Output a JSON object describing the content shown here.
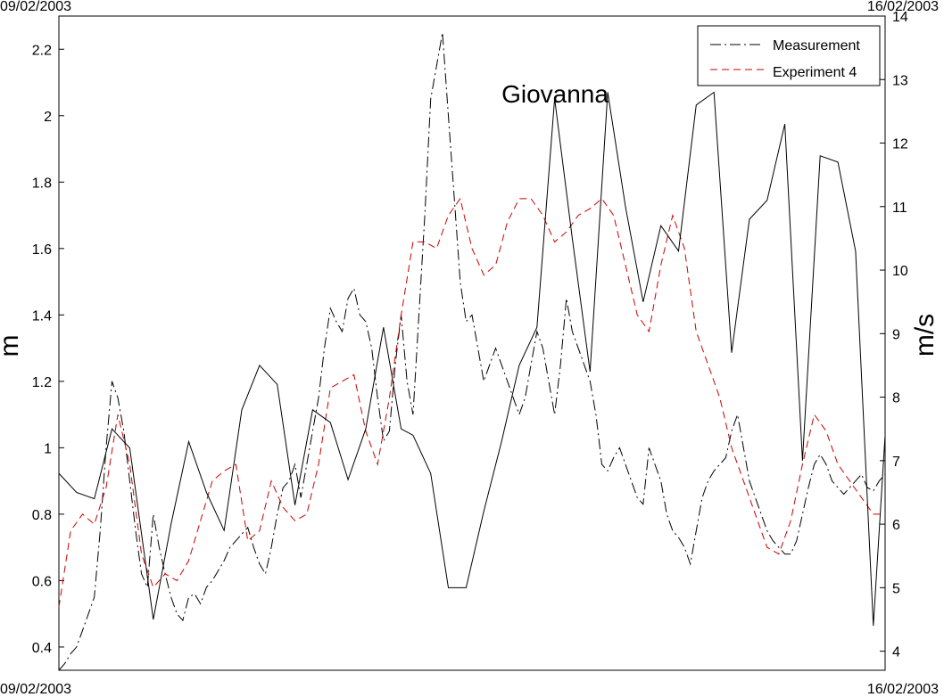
{
  "chart_data": {
    "type": "line",
    "date_top_left": "09/02/2003",
    "date_top_right": "16/02/2003",
    "date_bottom_left": "09/02/2003",
    "date_bottom_right": "16/02/2003",
    "ylabel_left": "m",
    "ylabel_right": "m/s",
    "ylim_left": [
      0.33,
      2.3
    ],
    "ylim_right": [
      3.7,
      14
    ],
    "yticks_left": [
      "0.4",
      "0.6",
      "0.8",
      "1",
      "1.2",
      "1.4",
      "1.6",
      "1.8",
      "2",
      "2.2"
    ],
    "yticks_right": [
      "4",
      "5",
      "6",
      "7",
      "8",
      "9",
      "10",
      "11",
      "12",
      "13",
      "14"
    ],
    "xlim_days": [
      0,
      7
    ],
    "annotation": {
      "text": "Giovanna",
      "x": 3.75,
      "y": 2.04
    },
    "legend": {
      "placement": "top-right"
    },
    "series": [
      {
        "name": "Measurement",
        "axis": "left",
        "color": "#000000",
        "style": "dashdot",
        "x": [
          0,
          0.05,
          0.1,
          0.15,
          0.2,
          0.25,
          0.3,
          0.35,
          0.4,
          0.45,
          0.5,
          0.55,
          0.6,
          0.65,
          0.7,
          0.75,
          0.8,
          0.85,
          0.9,
          0.95,
          1.0,
          1.05,
          1.1,
          1.15,
          1.2,
          1.25,
          1.3,
          1.35,
          1.4,
          1.45,
          1.5,
          1.55,
          1.6,
          1.65,
          1.7,
          1.75,
          1.8,
          1.85,
          1.9,
          1.95,
          2.0,
          2.05,
          2.1,
          2.15,
          2.2,
          2.25,
          2.3,
          2.35,
          2.4,
          2.45,
          2.5,
          2.55,
          2.6,
          2.65,
          2.7,
          2.75,
          2.8,
          2.85,
          2.9,
          2.95,
          3.0,
          3.05,
          3.1,
          3.15,
          3.2,
          3.25,
          3.3,
          3.35,
          3.4,
          3.45,
          3.5,
          3.55,
          3.6,
          3.65,
          3.7,
          3.75,
          3.8,
          3.85,
          3.9,
          3.95,
          4.0,
          4.05,
          4.1,
          4.15,
          4.2,
          4.25,
          4.3,
          4.35,
          4.4,
          4.45,
          4.5,
          4.55,
          4.6,
          4.65,
          4.7,
          4.75,
          4.8,
          4.85,
          4.9,
          4.95,
          5.0,
          5.05,
          5.1,
          5.15,
          5.2,
          5.25,
          5.3,
          5.35,
          5.4,
          5.45,
          5.5,
          5.55,
          5.6,
          5.65,
          5.7,
          5.75,
          5.8,
          5.85,
          5.9,
          5.95,
          6.0,
          6.05,
          6.1,
          6.15,
          6.2,
          6.25,
          6.3,
          6.35,
          6.4,
          6.45,
          6.5,
          6.55,
          6.6,
          6.65,
          6.7,
          6.75,
          6.8,
          6.85,
          6.9,
          6.95,
          7.0
        ],
        "values": [
          0.33,
          0.35,
          0.38,
          0.4,
          0.45,
          0.5,
          0.55,
          0.75,
          1.0,
          1.2,
          1.15,
          1.05,
          0.9,
          0.75,
          0.62,
          0.58,
          0.8,
          0.7,
          0.62,
          0.55,
          0.5,
          0.48,
          0.55,
          0.56,
          0.53,
          0.58,
          0.6,
          0.63,
          0.66,
          0.7,
          0.72,
          0.74,
          0.76,
          0.7,
          0.65,
          0.62,
          0.7,
          0.8,
          0.88,
          0.9,
          0.95,
          0.85,
          0.95,
          1.05,
          1.15,
          1.3,
          1.42,
          1.38,
          1.35,
          1.45,
          1.48,
          1.4,
          1.38,
          1.3,
          1.15,
          1.02,
          1.05,
          1.25,
          1.4,
          1.2,
          1.1,
          1.4,
          1.7,
          2.05,
          2.15,
          2.25,
          2.0,
          1.75,
          1.5,
          1.38,
          1.4,
          1.3,
          1.2,
          1.25,
          1.3,
          1.25,
          1.2,
          1.15,
          1.1,
          1.15,
          1.25,
          1.35,
          1.3,
          1.2,
          1.1,
          1.25,
          1.45,
          1.35,
          1.3,
          1.25,
          1.2,
          1.1,
          0.95,
          0.93,
          0.97,
          1.0,
          0.95,
          0.9,
          0.85,
          0.83,
          1.0,
          0.95,
          0.9,
          0.8,
          0.75,
          0.73,
          0.7,
          0.65,
          0.75,
          0.85,
          0.9,
          0.93,
          0.95,
          0.97,
          1.05,
          1.1,
          1.0,
          0.9,
          0.85,
          0.8,
          0.75,
          0.72,
          0.7,
          0.68,
          0.68,
          0.72,
          0.8,
          0.88,
          0.95,
          0.98,
          0.95,
          0.9,
          0.88,
          0.86,
          0.88,
          0.9,
          0.92,
          0.88,
          0.87,
          0.9,
          0.92
        ]
      },
      {
        "name": "Experiment 4",
        "axis": "left",
        "color": "#cc0000",
        "style": "dashed",
        "x": [
          0,
          0.1,
          0.2,
          0.3,
          0.4,
          0.5,
          0.6,
          0.7,
          0.8,
          0.9,
          1.0,
          1.1,
          1.2,
          1.3,
          1.4,
          1.5,
          1.6,
          1.7,
          1.8,
          1.9,
          2.0,
          2.1,
          2.2,
          2.3,
          2.4,
          2.5,
          2.6,
          2.7,
          2.8,
          2.9,
          3.0,
          3.1,
          3.2,
          3.3,
          3.4,
          3.5,
          3.6,
          3.7,
          3.8,
          3.9,
          4.0,
          4.1,
          4.2,
          4.3,
          4.4,
          4.5,
          4.6,
          4.7,
          4.8,
          4.9,
          5.0,
          5.1,
          5.2,
          5.3,
          5.4,
          5.5,
          5.6,
          5.7,
          5.8,
          5.9,
          6.0,
          6.1,
          6.2,
          6.3,
          6.4,
          6.5,
          6.6,
          6.7,
          6.8,
          6.9,
          7.0
        ],
        "values": [
          0.52,
          0.75,
          0.8,
          0.77,
          0.88,
          1.1,
          0.95,
          0.68,
          0.58,
          0.62,
          0.6,
          0.66,
          0.78,
          0.9,
          0.93,
          0.95,
          0.72,
          0.75,
          0.9,
          0.82,
          0.78,
          0.8,
          0.95,
          1.18,
          1.2,
          1.22,
          1.05,
          0.95,
          1.15,
          1.4,
          1.62,
          1.62,
          1.6,
          1.7,
          1.75,
          1.6,
          1.52,
          1.55,
          1.68,
          1.75,
          1.75,
          1.7,
          1.62,
          1.65,
          1.7,
          1.72,
          1.75,
          1.7,
          1.55,
          1.4,
          1.35,
          1.55,
          1.7,
          1.6,
          1.35,
          1.25,
          1.15,
          1.0,
          0.9,
          0.8,
          0.7,
          0.68,
          0.78,
          0.95,
          1.1,
          1.05,
          0.95,
          0.9,
          0.85,
          0.8,
          0.8
        ]
      },
      {
        "name": "",
        "axis": "right",
        "color": "#000000",
        "style": "solid",
        "x": [
          0,
          0.15,
          0.3,
          0.45,
          0.6,
          0.8,
          0.95,
          1.1,
          1.25,
          1.4,
          1.55,
          1.7,
          1.85,
          2.0,
          2.15,
          2.3,
          2.45,
          2.6,
          2.75,
          2.9,
          3.0,
          3.15,
          3.3,
          3.45,
          3.6,
          3.75,
          3.9,
          4.05,
          4.2,
          4.35,
          4.5,
          4.65,
          4.8,
          4.95,
          5.1,
          5.25,
          5.4,
          5.55,
          5.7,
          5.85,
          6.0,
          6.15,
          6.3,
          6.45,
          6.6,
          6.75,
          6.9,
          7.0
        ],
        "values": [
          6.8,
          6.5,
          6.4,
          7.5,
          7.2,
          4.5,
          6.0,
          7.3,
          6.5,
          5.9,
          7.8,
          8.5,
          8.2,
          6.3,
          7.8,
          7.6,
          6.7,
          7.5,
          9.1,
          7.5,
          7.4,
          6.8,
          5.0,
          5.0,
          6.2,
          7.3,
          8.5,
          9.1,
          12.7,
          10.5,
          8.4,
          12.8,
          11.0,
          9.5,
          10.7,
          10.3,
          12.6,
          12.8,
          8.7,
          10.8,
          11.1,
          12.3,
          7.0,
          11.8,
          11.7,
          10.3,
          4.4,
          7.4
        ]
      }
    ]
  }
}
